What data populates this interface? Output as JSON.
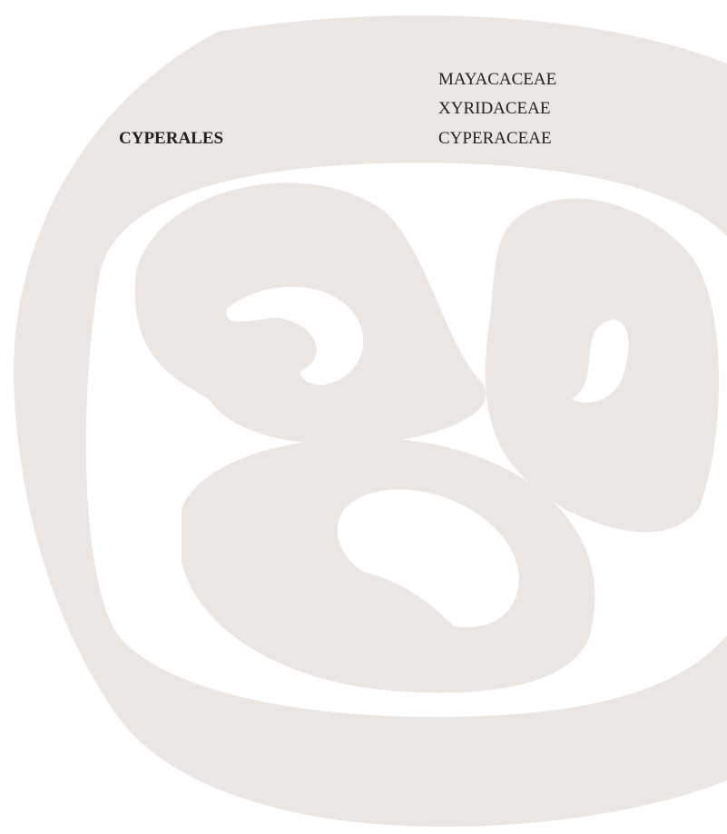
{
  "order": "CYPERALES",
  "families": [
    "MAYACACEAE",
    "XYRIDACEAE",
    "CYPERACEAE"
  ]
}
